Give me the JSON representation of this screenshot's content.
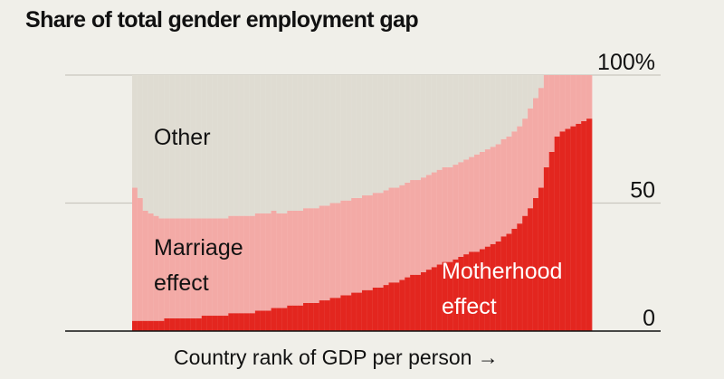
{
  "title": "Share of total gender employment gap",
  "chart_data": {
    "type": "area",
    "stacking": "percent",
    "title": "Share of total gender employment gap",
    "xlabel": "Country rank of GDP per person →",
    "ylabel": "",
    "ylim": [
      0,
      100
    ],
    "y_ticks": [
      "0",
      "50",
      "100%"
    ],
    "grid": true,
    "num_countries": 86,
    "series": [
      {
        "name": "Motherhood effect",
        "color": "#e3261f",
        "values": [
          4,
          4,
          4,
          4,
          4,
          4,
          5,
          5,
          5,
          5,
          5,
          5,
          5,
          6,
          6,
          6,
          6,
          6,
          7,
          7,
          7,
          7,
          7,
          8,
          8,
          8,
          9,
          9,
          9,
          10,
          10,
          10,
          11,
          11,
          11,
          12,
          12,
          13,
          13,
          14,
          14,
          15,
          15,
          16,
          16,
          17,
          17,
          18,
          19,
          19,
          20,
          21,
          22,
          22,
          23,
          24,
          25,
          26,
          27,
          27,
          28,
          29,
          30,
          31,
          31,
          32,
          33,
          34,
          35,
          37,
          38,
          40,
          42,
          45,
          48,
          52,
          56,
          64,
          70,
          76,
          78,
          79,
          80,
          81,
          82,
          83
        ]
      },
      {
        "name": "Marriage effect",
        "color": "#f3aaa6",
        "values": [
          52,
          48,
          43,
          42,
          41,
          40,
          39,
          39,
          39,
          39,
          39,
          39,
          39,
          38,
          38,
          38,
          38,
          38,
          38,
          38,
          38,
          38,
          38,
          38,
          38,
          38,
          38,
          37,
          37,
          37,
          37,
          37,
          37,
          37,
          37,
          37,
          37,
          37,
          37,
          37,
          37,
          37,
          37,
          37,
          37,
          37,
          37,
          37,
          37,
          37,
          37,
          37,
          37,
          37,
          37,
          37,
          37,
          37,
          37,
          37,
          37,
          37,
          37,
          37,
          38,
          38,
          38,
          38,
          38,
          38,
          38,
          38,
          38,
          38,
          39,
          39,
          39,
          36,
          30,
          24,
          22,
          21,
          20,
          19,
          18,
          17
        ]
      },
      {
        "name": "Other",
        "color": "#dfdcd2",
        "values": [
          44,
          48,
          53,
          54,
          55,
          56,
          56,
          56,
          56,
          56,
          56,
          56,
          56,
          56,
          56,
          56,
          56,
          56,
          55,
          55,
          55,
          55,
          55,
          54,
          54,
          54,
          53,
          54,
          54,
          53,
          53,
          53,
          52,
          52,
          52,
          51,
          51,
          50,
          50,
          49,
          49,
          48,
          48,
          47,
          47,
          46,
          46,
          45,
          44,
          44,
          43,
          42,
          41,
          41,
          40,
          39,
          38,
          37,
          36,
          36,
          35,
          34,
          33,
          32,
          31,
          30,
          29,
          28,
          27,
          25,
          24,
          22,
          20,
          17,
          13,
          9,
          5,
          0,
          0,
          0,
          0,
          0,
          0,
          0,
          0,
          0
        ]
      }
    ],
    "labels": {
      "other": "Other",
      "marriage_line1": "Marriage",
      "marriage_line2": "effect",
      "motherhood_line1": "Motherhood",
      "motherhood_line2": "effect"
    }
  }
}
